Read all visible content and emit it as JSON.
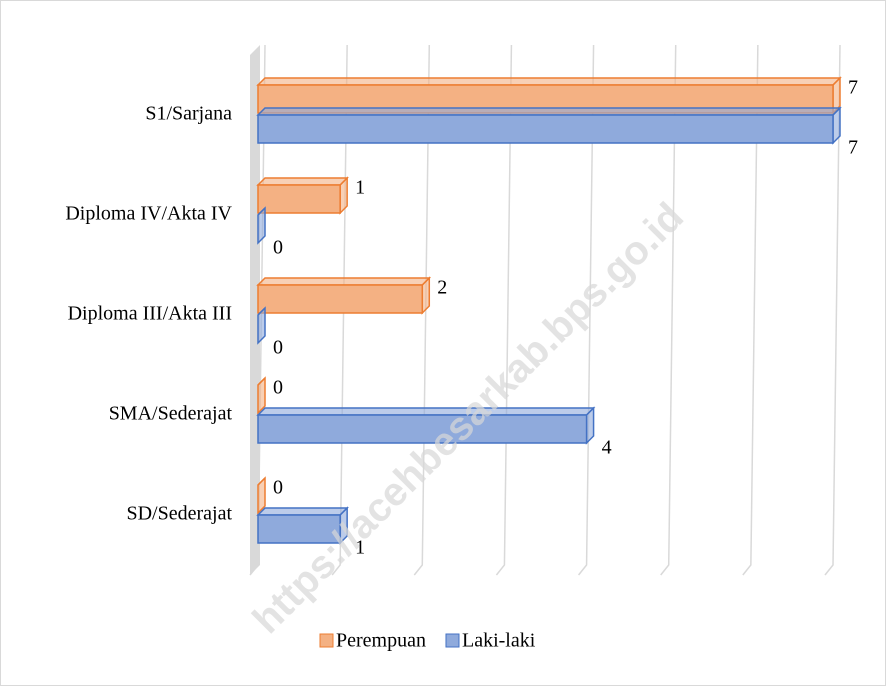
{
  "chart_data": {
    "type": "bar3d_horizontal",
    "categories": [
      "S1/Sarjana",
      "Diploma IV/Akta IV",
      "Diploma III/Akta III",
      "SMA/Sederajat",
      "SD/Sederajat"
    ],
    "series": [
      {
        "name": "Perempuan",
        "color": "#f4b183",
        "edge": "#ed7d31",
        "values": [
          7,
          1,
          2,
          0,
          0
        ]
      },
      {
        "name": "Laki-laki",
        "color": "#8faadc",
        "edge": "#4472c4",
        "values": [
          7,
          0,
          0,
          4,
          1
        ]
      }
    ],
    "xlim": [
      0,
      7
    ],
    "xticks": [
      0,
      1,
      2,
      3,
      4,
      5,
      6,
      7
    ],
    "grid": true,
    "legend": "bottom",
    "watermark": "https://acehbesarkab.bps.go.id"
  }
}
